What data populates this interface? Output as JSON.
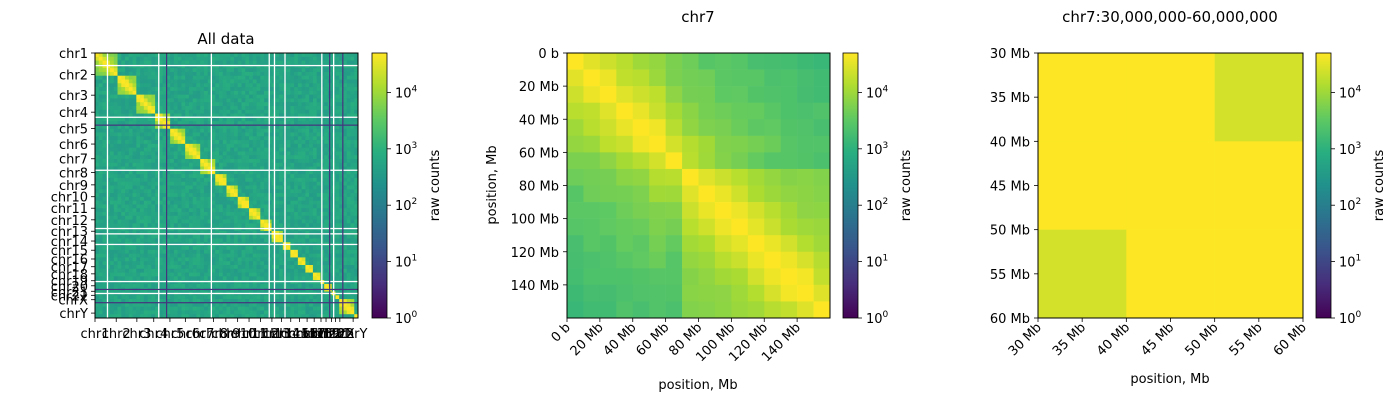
{
  "figure": {
    "colormap": "viridis",
    "colorbar_label": "raw counts",
    "chart_data": [
      {
        "type": "heatmap",
        "title": "All data",
        "xlabel": "",
        "ylabel": "",
        "scale": "log",
        "chromosomes": [
          "chr1",
          "chr2",
          "chr3",
          "chr4",
          "chr5",
          "chr6",
          "chr7",
          "chr8",
          "chr9",
          "chr10",
          "chr11",
          "chr12",
          "chr13",
          "chr14",
          "chr15",
          "chr16",
          "chr17",
          "chr18",
          "chr19",
          "chr20",
          "chr21",
          "chr22",
          "chrX",
          "chrY"
        ],
        "x_tick_labels": [
          "chr1",
          "chr2",
          "chr3",
          "chr4",
          "chr5",
          "chr6",
          "chr7",
          "chr8",
          "chr9",
          "chr10",
          "chr11",
          "chr12",
          "chr13",
          "chr14",
          "chr15",
          "chr16",
          "chr17",
          "chr18",
          "chr19",
          "chr20",
          "chr21",
          "chr22",
          "chrX",
          "chrY"
        ],
        "y_tick_labels": [
          "chr1",
          "chr2",
          "chr3",
          "chr4",
          "chr5",
          "chr6",
          "chr7",
          "chr8",
          "chr9",
          "chr10",
          "chr11",
          "chr12",
          "chr13",
          "chr14",
          "chr15",
          "chr16",
          "chr17",
          "chr18",
          "chr19",
          "chr20",
          "chr21",
          "chr22",
          "chrX",
          "chrY"
        ],
        "value_range": [
          1,
          50000
        ],
        "colorbar_ticks": [
          "10^0",
          "10^1",
          "10^2",
          "10^3",
          "10^4"
        ]
      },
      {
        "type": "heatmap",
        "title": "chr7",
        "xlabel": "position, Mb",
        "ylabel": "position, Mb",
        "scale": "log",
        "x_tick_labels": [
          "0 b",
          "20 Mb",
          "40 Mb",
          "60 Mb",
          "80 Mb",
          "100 Mb",
          "120 Mb",
          "140 Mb"
        ],
        "y_tick_labels": [
          "0 b",
          "20 Mb",
          "40 Mb",
          "60 Mb",
          "80 Mb",
          "100 Mb",
          "120 Mb",
          "140 Mb"
        ],
        "range_mb": [
          0,
          160
        ],
        "bin_size_mb": 10,
        "value_range": [
          1,
          50000
        ],
        "colorbar_ticks": [
          "10^0",
          "10^1",
          "10^2",
          "10^3",
          "10^4"
        ]
      },
      {
        "type": "heatmap",
        "title": "chr7:30,000,000-60,000,000",
        "xlabel": "position, Mb",
        "ylabel": "",
        "scale": "log",
        "x_tick_labels": [
          "30 Mb",
          "35 Mb",
          "40 Mb",
          "45 Mb",
          "50 Mb",
          "55 Mb",
          "60 Mb"
        ],
        "y_tick_labels": [
          "30 Mb",
          "35 Mb",
          "40 Mb",
          "45 Mb",
          "50 Mb",
          "55 Mb",
          "60 Mb"
        ],
        "range_mb": [
          30,
          60
        ],
        "cells_log10": [
          [
            4.7,
            4.7,
            4.4
          ],
          [
            4.7,
            4.7,
            4.7
          ],
          [
            4.4,
            4.7,
            4.7
          ]
        ],
        "value_range": [
          1,
          50000
        ],
        "colorbar_ticks": [
          "10^0",
          "10^1",
          "10^2",
          "10^3",
          "10^4"
        ]
      }
    ]
  }
}
